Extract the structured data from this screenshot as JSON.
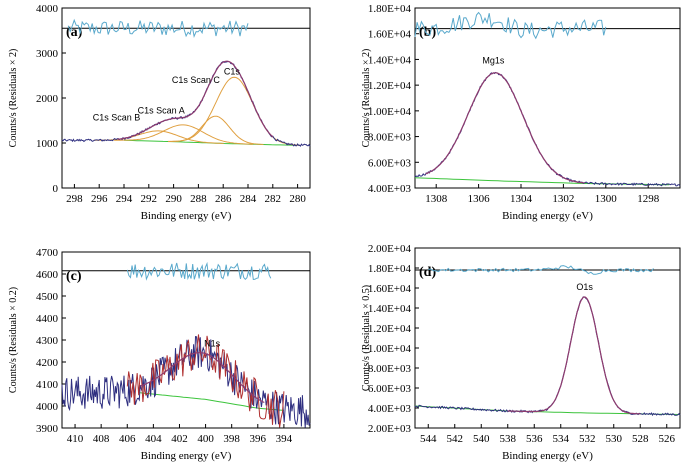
{
  "colors": {
    "spectrum": "#2f2f80",
    "envelope": "#c0392b",
    "fit": "#8e3b6e",
    "peak": "#e0a040",
    "background": "#3cc43c",
    "residual": "#5aa9cc",
    "noisy_mid": "#b03030"
  },
  "chart_data": [
    {
      "type": "line",
      "panel_label": "(a)",
      "xlabel": "Binding energy (eV)",
      "ylabel": "Counts/s (Residuals × 2)",
      "xlim": [
        299,
        279
      ],
      "ylim": [
        0,
        4000
      ],
      "xticks": [
        "298",
        "296",
        "294",
        "292",
        "290",
        "288",
        "286",
        "284",
        "282",
        "280"
      ],
      "xtick_values": [
        298,
        296,
        294,
        292,
        290,
        288,
        286,
        284,
        282,
        280
      ],
      "yticks": [
        "0",
        "1000",
        "2000",
        "3000",
        "4000"
      ],
      "ytick_values": [
        0,
        1000,
        2000,
        3000,
        4000
      ],
      "residual_baseline": 3550,
      "residual_amp": 180,
      "annotations": [
        {
          "text": "C1s",
          "x": 285.3,
          "y": 2520
        },
        {
          "text": "C1s Scan C",
          "x": 288.2,
          "y": 2330
        },
        {
          "text": "C1s Scan A",
          "x": 291.0,
          "y": 1660
        },
        {
          "text": "C1s Scan B",
          "x": 294.6,
          "y": 1500
        }
      ],
      "series": [
        {
          "name": "background",
          "kind": "line",
          "points": [
            [
              294,
              1060
            ],
            [
              290,
              1030
            ],
            [
              286,
              990
            ],
            [
              282,
              960
            ],
            [
              280,
              950
            ]
          ]
        },
        {
          "name": "C1s",
          "kind": "peak",
          "center": 285.1,
          "height": 1480,
          "width": 1.5
        },
        {
          "name": "C1s Scan C",
          "kind": "peak",
          "center": 286.6,
          "height": 600,
          "width": 1.1
        },
        {
          "name": "C1s Scan A",
          "kind": "peak",
          "center": 289.2,
          "height": 380,
          "width": 1.6
        },
        {
          "name": "C1s Scan B",
          "kind": "peak",
          "center": 291.2,
          "height": 230,
          "width": 1.5
        }
      ]
    },
    {
      "type": "line",
      "panel_label": "(b)",
      "xlabel": "Binding energy (eV)",
      "ylabel": "Counts/s (Residuals × 2)",
      "xlim": [
        1309,
        1296.5
      ],
      "ylim": [
        4000,
        18000
      ],
      "xticks": [
        "1308",
        "1306",
        "1304",
        "1302",
        "1300",
        "1298"
      ],
      "xtick_values": [
        1308,
        1306,
        1304,
        1302,
        1300,
        1298
      ],
      "yticks": [
        "4.00E+03",
        "6.00E+03",
        "8.00E+03",
        "1.00E+04",
        "1.20E+04",
        "1.40E+04",
        "1.60E+04",
        "1.80E+04"
      ],
      "ytick_values": [
        4000,
        6000,
        8000,
        10000,
        12000,
        14000,
        16000,
        18000
      ],
      "residual_baseline": 16400,
      "residual_amp": 700,
      "annotations": [
        {
          "text": "Mg1s",
          "x": 1305.3,
          "y": 13700
        }
      ],
      "series": [
        {
          "name": "background",
          "kind": "line",
          "points": [
            [
              1309,
              4800
            ],
            [
              1305,
              4550
            ],
            [
              1301,
              4350
            ],
            [
              1297,
              4250
            ]
          ]
        },
        {
          "name": "Mg1s",
          "kind": "peak",
          "center": 1305.2,
          "height": 8400,
          "width": 1.3
        }
      ]
    },
    {
      "type": "line",
      "panel_label": "(c)",
      "xlabel": "Binding energy (eV)",
      "ylabel": "Counts/s (Residuals × 0.2)",
      "xlim": [
        411,
        392
      ],
      "ylim": [
        3900,
        4700
      ],
      "xticks": [
        "410",
        "408",
        "406",
        "404",
        "402",
        "400",
        "398",
        "396",
        "394"
      ],
      "xtick_values": [
        410,
        408,
        406,
        404,
        402,
        400,
        398,
        396,
        394
      ],
      "yticks": [
        "3900",
        "4000",
        "4100",
        "4200",
        "4300",
        "4400",
        "4500",
        "4600",
        "4700"
      ],
      "ytick_values": [
        3900,
        4000,
        4100,
        4200,
        4300,
        4400,
        4500,
        4600,
        4700
      ],
      "residual_baseline": 4615,
      "residual_amp": 40,
      "annotations": [
        {
          "text": "N1s",
          "x": 399.5,
          "y": 4270
        }
      ],
      "series": [
        {
          "name": "background",
          "kind": "line",
          "points": [
            [
              405,
              4060
            ],
            [
              400,
              4030
            ],
            [
              396,
              3990
            ],
            [
              394,
              3980
            ]
          ]
        },
        {
          "name": "N1s",
          "kind": "peak",
          "center": 400.3,
          "height": 210,
          "width": 2.4
        }
      ]
    },
    {
      "type": "line",
      "panel_label": "(d)",
      "xlabel": "Binding energy (eV)",
      "ylabel": "Counts/s (Residuals × 0.5)",
      "xlim": [
        545,
        525
      ],
      "ylim": [
        2000,
        20000
      ],
      "xticks": [
        "544",
        "542",
        "540",
        "538",
        "536",
        "534",
        "532",
        "530",
        "528",
        "526"
      ],
      "xtick_values": [
        544,
        542,
        540,
        538,
        536,
        534,
        532,
        530,
        528,
        526
      ],
      "yticks": [
        "2.00E+03",
        "4.00E+03",
        "6.00E+03",
        "8.00E+03",
        "1.00E+04",
        "1.20E+04",
        "1.40E+04",
        "1.60E+04",
        "1.80E+04",
        "2.00E+04"
      ],
      "ytick_values": [
        2000,
        4000,
        6000,
        8000,
        10000,
        12000,
        14000,
        16000,
        18000,
        20000
      ],
      "residual_baseline": 17800,
      "residual_amp": 300,
      "annotations": [
        {
          "text": "O1s",
          "x": 532.2,
          "y": 15800
        }
      ],
      "series": [
        {
          "name": "background",
          "kind": "line",
          "points": [
            [
              545,
              4200
            ],
            [
              538,
              3700
            ],
            [
              532,
              3500
            ],
            [
              525,
              3350
            ]
          ]
        },
        {
          "name": "O1s",
          "kind": "peak",
          "center": 532.2,
          "height": 11600,
          "width": 1.05
        }
      ]
    }
  ]
}
